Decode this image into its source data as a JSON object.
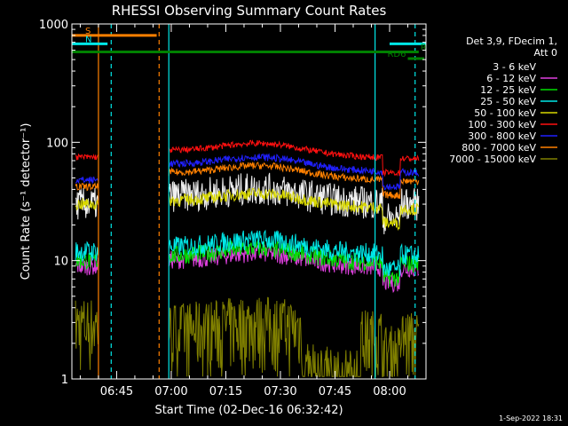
{
  "chart_data": {
    "type": "line",
    "title": "RHESSI Observing Summary Count Rates",
    "xlabel": "Start Time (02-Dec-16 06:32:42)",
    "ylabel": "Count Rate (s⁻¹ detector⁻¹)",
    "y_scale": "log",
    "ylim": [
      1,
      1000
    ],
    "xlim": [
      "06:32:42",
      "08:10:00"
    ],
    "x_ticks": [
      "06:45",
      "07:00",
      "07:15",
      "07:30",
      "07:45",
      "08:00"
    ],
    "y_ticks": [
      "1",
      "10",
      "100",
      "1000"
    ],
    "legend_header": [
      "Det 3,9, FDecim 1,",
      "Att 0"
    ],
    "legend_position": "right",
    "series": [
      {
        "name": "3 - 6 keV",
        "color": "#000000",
        "level_pre": 30,
        "level_post": 35
      },
      {
        "name": "6 - 12 keV",
        "color": "#e040e0",
        "level_pre": 9,
        "level_post": 10
      },
      {
        "name": "12 - 25 keV",
        "color": "#00e000",
        "level_pre": 10,
        "level_post": 11
      },
      {
        "name": "25 - 50 keV",
        "color": "#00e8e8",
        "level_pre": 12,
        "level_post": 13
      },
      {
        "name": "50 - 100 keV",
        "color": "#d8d800",
        "level_pre": 30,
        "level_post": 32
      },
      {
        "name": "100 - 300 keV",
        "color": "#ff1010",
        "level_pre": 75,
        "level_post": 85
      },
      {
        "name": "300 - 800 keV",
        "color": "#2020ff",
        "level_pre": 48,
        "level_post": 65
      },
      {
        "name": "800 - 7000 keV",
        "color": "#ff8000",
        "level_pre": 42,
        "level_post": 55
      },
      {
        "name": "7000 - 15000 keV",
        "color": "#808000",
        "level_pre": 2.8,
        "level_post": 2.5
      }
    ],
    "annotations": [
      {
        "label": "S",
        "color": "#ff8000",
        "start": "06:32:42",
        "end": "06:56:00",
        "y": 800
      },
      {
        "label": "N",
        "color": "#00e8e8",
        "start": "06:32:42",
        "end": "06:42:30",
        "y": 680
      },
      {
        "label": "",
        "color": "#00e8e8",
        "start": "08:00:00",
        "end": "08:10:00",
        "y": 680
      },
      {
        "label": "RD6",
        "color": "#008000",
        "start": "06:32:42",
        "end": "08:08:00",
        "y": 580
      },
      {
        "label": "RD6",
        "color": "#008000",
        "start": "08:05:00",
        "end": "08:09:30",
        "y": 510
      }
    ],
    "vertical_markers": [
      {
        "time": "06:40:00",
        "color": "#ff8000",
        "style": "solid"
      },
      {
        "time": "06:43:30",
        "color": "#00e8e8",
        "style": "dashed"
      },
      {
        "time": "06:56:40",
        "color": "#ff8000",
        "style": "dashed"
      },
      {
        "time": "06:59:20",
        "color": "#00e8e8",
        "style": "solid"
      },
      {
        "time": "07:56:00",
        "color": "#00e8e8",
        "style": "solid"
      },
      {
        "time": "08:07:00",
        "color": "#00e8e8",
        "style": "dashed"
      }
    ],
    "data_gaps": [
      [
        "06:40:00",
        "06:59:20"
      ]
    ],
    "footer": "1-Sep-2022 18:31"
  }
}
